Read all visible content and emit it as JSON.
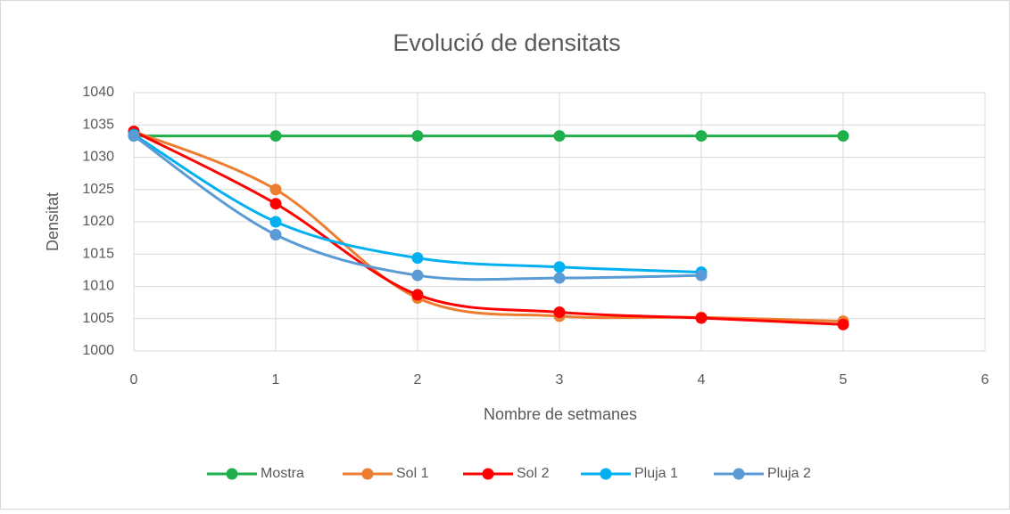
{
  "chart_data": {
    "type": "line",
    "title": "Evolució de densitats",
    "x_label": "Nombre de setmanes",
    "y_label": "Densitat",
    "xlim": [
      0,
      6
    ],
    "xticks": [
      0,
      1,
      2,
      3,
      4,
      5,
      6
    ],
    "ylim": [
      1000,
      1040
    ],
    "yticks": [
      1000,
      1005,
      1010,
      1015,
      1020,
      1025,
      1030,
      1035,
      1040
    ],
    "grid": true,
    "legend": "bottom",
    "smooth": true,
    "series": [
      {
        "name": "Mostra",
        "color": "#1fb04b",
        "x": [
          0,
          1,
          2,
          3,
          4,
          5
        ],
        "values": [
          1033.3,
          1033.3,
          1033.3,
          1033.3,
          1033.3,
          1033.3
        ]
      },
      {
        "name": "Sol 1",
        "color": "#ed7d31",
        "x": [
          0,
          1,
          2,
          3,
          4,
          5
        ],
        "values": [
          1034,
          1025,
          1008.2,
          1005.4,
          1005.2,
          1004.6
        ]
      },
      {
        "name": "Sol 2",
        "color": "#ff0000",
        "x": [
          0,
          1,
          2,
          3,
          4,
          5
        ],
        "values": [
          1034,
          1022.8,
          1008.7,
          1006,
          1005.1,
          1004.1
        ]
      },
      {
        "name": "Pluja 1",
        "color": "#00b0f0",
        "x": [
          0,
          1,
          2,
          3,
          4
        ],
        "values": [
          1033.5,
          1020,
          1014.4,
          1013,
          1012.2
        ]
      },
      {
        "name": "Pluja 2",
        "color": "#5b9bd5",
        "x": [
          0,
          1,
          2,
          3,
          4
        ],
        "values": [
          1033.3,
          1018,
          1011.7,
          1011.3,
          1011.7
        ]
      }
    ]
  }
}
